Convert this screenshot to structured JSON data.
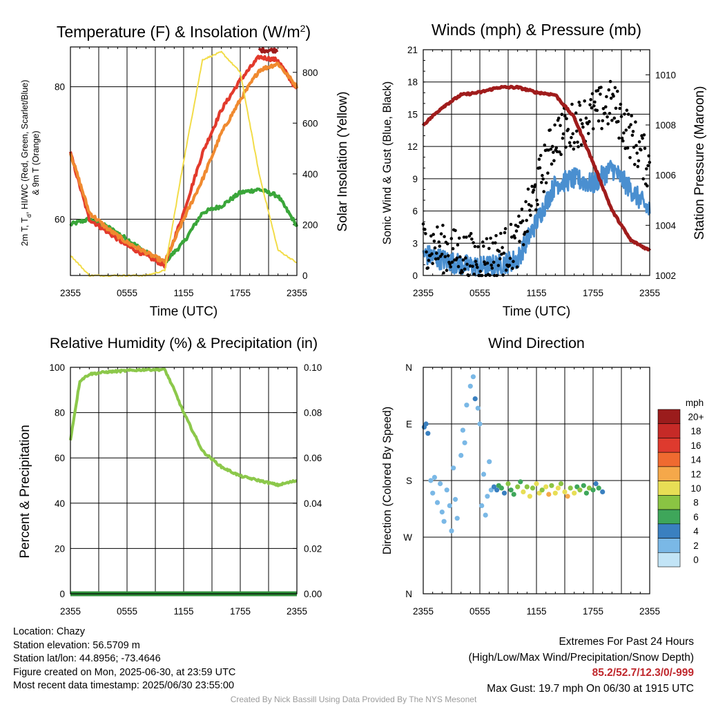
{
  "chart_data": [
    {
      "type": "line",
      "title": "Temperature (F) & Insolation (W/m",
      "title_sup": "2",
      "title_close": ")",
      "xlabel": "Time (UTC)",
      "ylabel": "2m T, T",
      "ylabel_sub": "d",
      "ylabel_rest": ", HI/WC (Red, Green, Scarlet/Blue)",
      "ylabel_line2": "& 9m T (Orange)",
      "y2label": "Solar Insolation (Yellow)",
      "x_ticks": [
        "2355",
        "0555",
        "1155",
        "1755",
        "2355"
      ],
      "y_ticks": [
        "60",
        "80"
      ],
      "y2_ticks": [
        "0",
        "200",
        "400",
        "600",
        "800"
      ],
      "ylim": [
        51.5,
        86
      ],
      "y2lim": [
        0,
        900
      ],
      "x": [
        0,
        2,
        4,
        6,
        8,
        10,
        12,
        14,
        16,
        18,
        20,
        22,
        24
      ],
      "series": [
        {
          "color": "#3aa63a",
          "role": "dewpoint",
          "values": [
            59.2,
            60.0,
            58.8,
            57.0,
            55.0,
            53.5,
            56.5,
            61.0,
            62.0,
            64.0,
            64.5,
            63.5,
            59.0
          ]
        },
        {
          "color": "#e23a2c",
          "role": "temperature",
          "values": [
            70.0,
            60.0,
            58.0,
            56.0,
            54.5,
            53.0,
            61.0,
            70.0,
            76.5,
            81.0,
            84.5,
            84.0,
            79.5
          ]
        },
        {
          "color": "#9e1b1b",
          "role": "heat-index",
          "values": [
            null,
            null,
            null,
            null,
            null,
            null,
            null,
            null,
            null,
            null,
            85.5,
            85.5,
            null
          ]
        },
        {
          "color": "#f08a30",
          "role": "temperature-9m",
          "values": [
            70.0,
            61.0,
            58.5,
            56.5,
            55.0,
            53.5,
            60.0,
            66.0,
            73.0,
            78.0,
            82.5,
            83.5,
            80.0
          ]
        },
        {
          "color": "#f2dc48",
          "role": "insolation",
          "axis": "y2",
          "values": [
            80,
            0,
            0,
            0,
            0,
            20,
            450,
            850,
            880,
            800,
            400,
            100,
            50
          ]
        }
      ]
    },
    {
      "type": "line",
      "title": "Winds (mph) & Pressure (mb)",
      "xlabel": "Time (UTC)",
      "ylabel": "Sonic Wind & Gust (Blue, Black)",
      "y2label": "Station Pressure (Maroon)",
      "x_ticks": [
        "2355",
        "0555",
        "1155",
        "1755",
        "2355"
      ],
      "y_ticks": [
        "0",
        "3",
        "6",
        "9",
        "12",
        "15",
        "18",
        "21"
      ],
      "y2_ticks": [
        "1002",
        "1004",
        "1006",
        "1008",
        "1010"
      ],
      "ylim": [
        0,
        21
      ],
      "y2lim": [
        1002,
        1011
      ],
      "x": [
        0,
        2,
        4,
        6,
        8,
        10,
        12,
        14,
        16,
        18,
        20,
        22,
        24
      ],
      "series": [
        {
          "color": "#4a8fd0",
          "role": "wind",
          "values": [
            2.0,
            1.5,
            1.0,
            0.8,
            1.0,
            1.5,
            5.0,
            8.5,
            9.0,
            8.5,
            10.0,
            8.0,
            6.0
          ]
        },
        {
          "color": "#000000",
          "role": "gust",
          "values": [
            3.0,
            2.5,
            2.0,
            1.5,
            2.0,
            3.0,
            8.0,
            13.0,
            14.0,
            15.0,
            16.0,
            13.0,
            10.0
          ]
        },
        {
          "color": "#a01c1c",
          "role": "pressure",
          "axis": "y2",
          "values": [
            1008.0,
            1008.7,
            1009.2,
            1009.3,
            1009.5,
            1009.5,
            1009.3,
            1009.2,
            1008.3,
            1006.5,
            1004.6,
            1003.4,
            1003.0
          ]
        }
      ]
    },
    {
      "type": "line",
      "title": "Relative Humidity (%) & Precipitation (in)",
      "ylabel": "Percent & Precipitation",
      "x_ticks": [
        "2355",
        "0555",
        "1155",
        "1755",
        "2355"
      ],
      "y_ticks": [
        "0",
        "20",
        "40",
        "60",
        "80",
        "100"
      ],
      "y2_ticks": [
        "0.00",
        "0.02",
        "0.04",
        "0.06",
        "0.08",
        "0.10"
      ],
      "ylim": [
        0,
        100
      ],
      "y2lim": [
        0,
        0.1
      ],
      "x": [
        0,
        1,
        2,
        4,
        6,
        8,
        10,
        11,
        12,
        14,
        16,
        18,
        20,
        22,
        24
      ],
      "series": [
        {
          "color": "#8cc84b",
          "role": "humidity",
          "values": [
            68,
            94,
            97,
            98,
            98.5,
            99,
            99,
            90,
            80,
            63,
            56,
            52,
            50,
            48,
            50
          ]
        },
        {
          "color": "#2f8f3a",
          "role": "precipitation",
          "axis": "y2",
          "values": [
            0,
            0,
            0,
            0,
            0,
            0,
            0,
            0,
            0,
            0,
            0,
            0,
            0,
            0,
            0
          ]
        }
      ]
    },
    {
      "type": "scatter",
      "title": "Wind Direction",
      "ylabel": "Direction (Colored By Speed)",
      "x_ticks": [
        "2355",
        "0555",
        "1155",
        "1755",
        "2355"
      ],
      "y_ticks": [
        "N",
        "W",
        "S",
        "E",
        "N"
      ],
      "ylim": [
        0,
        360
      ],
      "colorbar_title": "mph",
      "colorbar_labels": [
        "20+",
        "18",
        "16",
        "14",
        "12",
        "10",
        "8",
        "6",
        "4",
        "2",
        "0"
      ],
      "colorbar_colors": [
        "#9b1c1c",
        "#c62a27",
        "#de3a2e",
        "#ef6a30",
        "#f5a84a",
        "#e8de55",
        "#8ac443",
        "#3ea65a",
        "#3a80c0",
        "#7ab8e6",
        "#c2e4f6"
      ],
      "points": [
        [
          0.1,
          265,
          3
        ],
        [
          0.3,
          270,
          4
        ],
        [
          0.5,
          255,
          3
        ],
        [
          0.8,
          180,
          1
        ],
        [
          1.0,
          160,
          2
        ],
        [
          1.2,
          185,
          1
        ],
        [
          1.5,
          145,
          1
        ],
        [
          1.8,
          175,
          1
        ],
        [
          2.0,
          130,
          2
        ],
        [
          2.2,
          115,
          1
        ],
        [
          2.5,
          165,
          1
        ],
        [
          2.8,
          140,
          1
        ],
        [
          3.0,
          100,
          1
        ],
        [
          3.2,
          200,
          1
        ],
        [
          3.4,
          150,
          1
        ],
        [
          3.6,
          120,
          1
        ],
        [
          4.0,
          220,
          1
        ],
        [
          4.2,
          260,
          1
        ],
        [
          4.4,
          240,
          2
        ],
        [
          4.6,
          300,
          1
        ],
        [
          5.0,
          330,
          2
        ],
        [
          5.3,
          345,
          2
        ],
        [
          5.5,
          310,
          3
        ],
        [
          5.8,
          295,
          2
        ],
        [
          6.0,
          270,
          1
        ],
        [
          6.2,
          140,
          1
        ],
        [
          6.4,
          190,
          1
        ],
        [
          6.6,
          125,
          2
        ],
        [
          6.8,
          155,
          2
        ],
        [
          7.0,
          210,
          1
        ],
        [
          7.2,
          165,
          2
        ],
        [
          7.5,
          170,
          3
        ],
        [
          7.8,
          165,
          4
        ],
        [
          8.0,
          172,
          6
        ],
        [
          8.3,
          168,
          5
        ],
        [
          8.6,
          160,
          4
        ],
        [
          9.0,
          175,
          7
        ],
        [
          9.3,
          165,
          6
        ],
        [
          9.6,
          158,
          5
        ],
        [
          10.0,
          170,
          8
        ],
        [
          10.3,
          178,
          6
        ],
        [
          10.6,
          162,
          9
        ],
        [
          11.0,
          170,
          8
        ],
        [
          11.3,
          155,
          10
        ],
        [
          11.6,
          168,
          7
        ],
        [
          12.0,
          175,
          9
        ],
        [
          12.3,
          160,
          10
        ],
        [
          12.6,
          165,
          8
        ],
        [
          13.0,
          170,
          9
        ],
        [
          13.3,
          158,
          11
        ],
        [
          13.6,
          172,
          8
        ],
        [
          14.0,
          160,
          10
        ],
        [
          14.3,
          168,
          9
        ],
        [
          14.6,
          175,
          7
        ],
        [
          15.0,
          162,
          10
        ],
        [
          15.3,
          155,
          11
        ],
        [
          15.6,
          168,
          8
        ],
        [
          16.0,
          160,
          9
        ],
        [
          16.3,
          170,
          6
        ],
        [
          16.6,
          165,
          7
        ],
        [
          17.0,
          172,
          5
        ],
        [
          17.3,
          160,
          6
        ],
        [
          17.6,
          168,
          8
        ],
        [
          18.0,
          165,
          6
        ],
        [
          18.3,
          175,
          4
        ],
        [
          18.6,
          168,
          5
        ],
        [
          19.0,
          162,
          4
        ]
      ]
    }
  ],
  "info_left": [
    "Location: Chazy",
    "Station elevation: 56.5709 m",
    "Station lat/lon: 44.8956; -73.4646",
    "Figure created on Mon, 2025-06-30, at 23:59 UTC",
    "Most recent data timestamp: 2025/06/30 23:55:00"
  ],
  "extremes": {
    "title": "Extremes For Past 24 Hours",
    "subtitle": "(High/Low/Max Wind/Precipitation/Snow Depth)",
    "values": "85.2/52.7/12.3/0/-999",
    "max_gust": "Max Gust: 19.7 mph On 06/30 at 1915 UTC"
  },
  "credit": "Created By Nick Bassill Using Data Provided By The NYS Mesonet"
}
